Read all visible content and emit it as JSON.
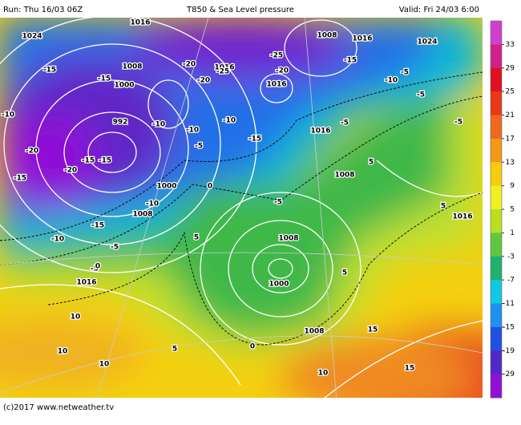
{
  "header": {
    "run": "Run: Thu 16/03 06Z",
    "title": "T850 & Sea Level pressure",
    "valid": "Valid: Fri 24/03 6:00"
  },
  "colorbar": {
    "ticks": [
      33,
      29,
      25,
      21,
      17,
      13,
      9,
      5,
      1,
      -3,
      -7,
      -11,
      -15,
      -19,
      -29
    ],
    "band_colors": [
      "#d040d0",
      "#d0208a",
      "#e01020",
      "#e83818",
      "#f06820",
      "#f49818",
      "#f8cc10",
      "#f0f020",
      "#b8e020",
      "#60c840",
      "#20b070",
      "#10c8e0",
      "#2090f0",
      "#2050e0",
      "#5028c8",
      "#9010d8"
    ]
  },
  "map": {
    "pressure_labels": [
      "1024",
      "1016",
      "1008",
      "1000",
      "992",
      "1000",
      "1008",
      "1016",
      "1016",
      "1016",
      "1008",
      "1016",
      "1024",
      "1016",
      "1008",
      "1008",
      "1000",
      "1008",
      "1016"
    ],
    "temperature_labels": [
      "-15",
      "-15",
      "-20",
      "-20",
      "-15",
      "-15",
      "-15",
      "-10",
      "-15",
      "-10",
      "-5",
      "-5",
      "-10",
      "-10",
      "-10",
      "-10",
      "-15",
      "-20",
      "-20",
      "-25",
      "-25",
      "-20",
      "-15",
      "-10",
      "-5",
      "-5",
      "-5",
      "-5",
      "-5",
      "0",
      "5",
      "5",
      "5",
      "10",
      "10",
      "10",
      "5",
      "0",
      "10",
      "15",
      "15",
      "0",
      "-5",
      "5"
    ]
  },
  "footer": "(c)2017 www.netweather.tv"
}
